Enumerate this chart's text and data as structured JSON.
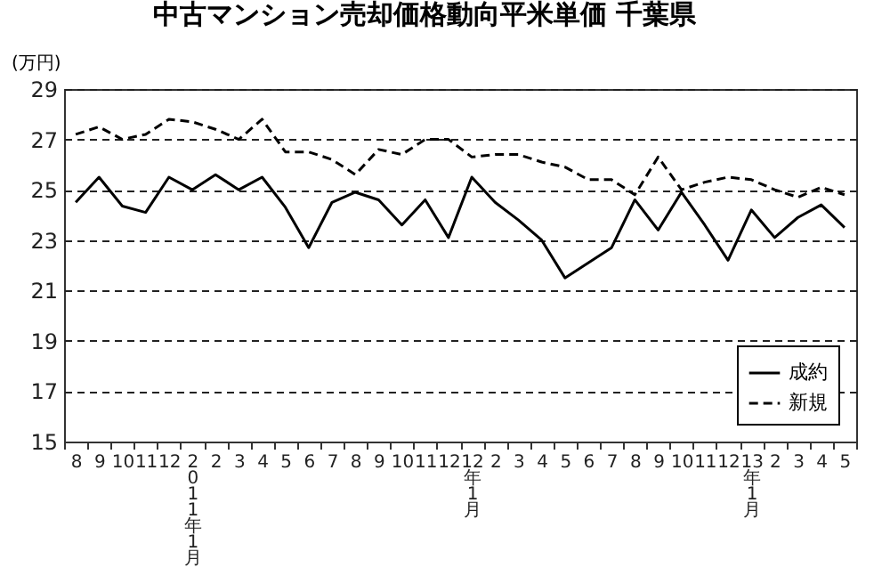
{
  "chart_data": {
    "type": "line",
    "title": "中古マンション売却価格動向平米単価 千葉県",
    "ylabel": "(万円)",
    "categories": [
      "8",
      "9",
      "10",
      "11",
      "12",
      "2011年1月",
      "2",
      "3",
      "4",
      "5",
      "6",
      "7",
      "8",
      "9",
      "10",
      "11",
      "12",
      "12年1月",
      "2",
      "3",
      "4",
      "5",
      "6",
      "7",
      "8",
      "9",
      "10",
      "11",
      "12",
      "13年1月",
      "2",
      "3",
      "4",
      "5"
    ],
    "series": [
      {
        "name": "成約",
        "color": "#000000",
        "line_style": "solid",
        "values": [
          24.5,
          25.5,
          24.35,
          24.1,
          25.5,
          25.0,
          25.6,
          25.0,
          25.5,
          24.3,
          22.7,
          24.5,
          24.9,
          24.6,
          23.6,
          24.6,
          23.1,
          25.5,
          24.5,
          23.8,
          23.0,
          21.5,
          22.1,
          22.7,
          24.6,
          23.4,
          24.9,
          23.6,
          22.2,
          24.2,
          23.1,
          23.9,
          24.4,
          23.5
        ]
      },
      {
        "name": "新規",
        "color": "#000000",
        "line_style": "dashed",
        "values": [
          27.2,
          27.5,
          27.0,
          27.2,
          27.8,
          27.7,
          27.4,
          27.0,
          27.8,
          26.5,
          26.5,
          26.2,
          25.6,
          26.6,
          26.4,
          27.0,
          27.0,
          26.3,
          26.4,
          26.4,
          26.1,
          25.9,
          25.4,
          25.4,
          24.8,
          26.3,
          25.0,
          25.3,
          25.5,
          25.4,
          25.0,
          24.7,
          25.1,
          24.8
        ]
      }
    ],
    "ylim": [
      15,
      29
    ],
    "yticks": [
      15,
      17,
      19,
      21,
      23,
      25,
      27,
      29
    ],
    "grid": "y",
    "legend": "bottom right",
    "marker": "none"
  }
}
